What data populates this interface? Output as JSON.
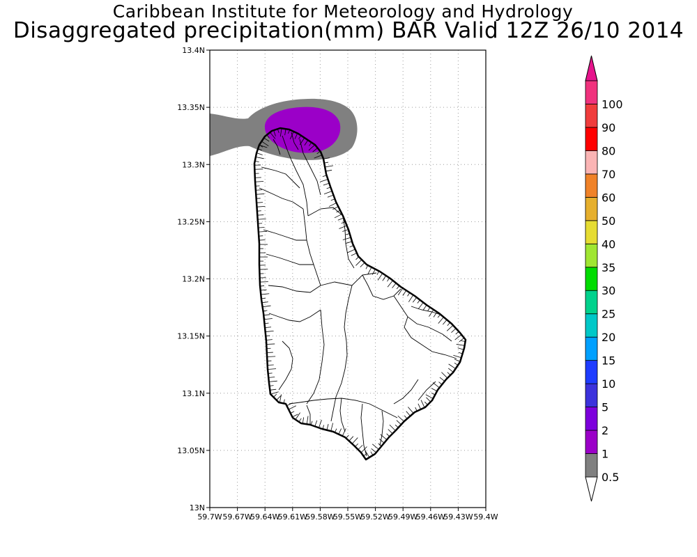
{
  "title": {
    "line1": "Caribbean Institute for Meteorology and Hydrology",
    "line2": "Disaggregated precipitation(mm) BAR Valid 12Z 26/10 2014"
  },
  "map": {
    "lat_range": [
      13.0,
      13.4
    ],
    "lon_range": [
      -59.7,
      -59.4
    ],
    "grid": "dotted",
    "lat_labels": [
      "13N",
      "13.05N",
      "13.1N",
      "13.15N",
      "13.2N",
      "13.25N",
      "13.3N",
      "13.35N",
      "13.4N"
    ],
    "lon_labels": [
      "59.7W",
      "59.67W",
      "59.64W",
      "59.61W",
      "59.58W",
      "59.55W",
      "59.52W",
      "59.49W",
      "59.46W",
      "59.43W",
      "59.4W"
    ],
    "precip_areas": [
      {
        "level": "0.5-1",
        "color": "#808080"
      },
      {
        "level": "1-2",
        "color": "#9b00c8"
      }
    ]
  },
  "colorbar": {
    "placement": "right",
    "levels": [
      {
        "label": "0.5",
        "color": "#808080"
      },
      {
        "label": "1",
        "color": "#9b00c8"
      },
      {
        "label": "2",
        "color": "#7d00dc"
      },
      {
        "label": "5",
        "color": "#3c32dc"
      },
      {
        "label": "10",
        "color": "#1e3cff"
      },
      {
        "label": "15",
        "color": "#00a0ff"
      },
      {
        "label": "20",
        "color": "#00c8c8"
      },
      {
        "label": "25",
        "color": "#00d28c"
      },
      {
        "label": "30",
        "color": "#00dc00"
      },
      {
        "label": "35",
        "color": "#a0e632"
      },
      {
        "label": "40",
        "color": "#e6dc32"
      },
      {
        "label": "50",
        "color": "#e6af2d"
      },
      {
        "label": "60",
        "color": "#f08228"
      },
      {
        "label": "70",
        "color": "#fab4b4"
      },
      {
        "label": "80",
        "color": "#ff0000"
      },
      {
        "label": "90",
        "color": "#f03c3c"
      },
      {
        "label": "100",
        "color": "#f0327d"
      }
    ],
    "top_arrow_color": "#e6148c",
    "bottom_arrow_color": "#ffffff"
  }
}
